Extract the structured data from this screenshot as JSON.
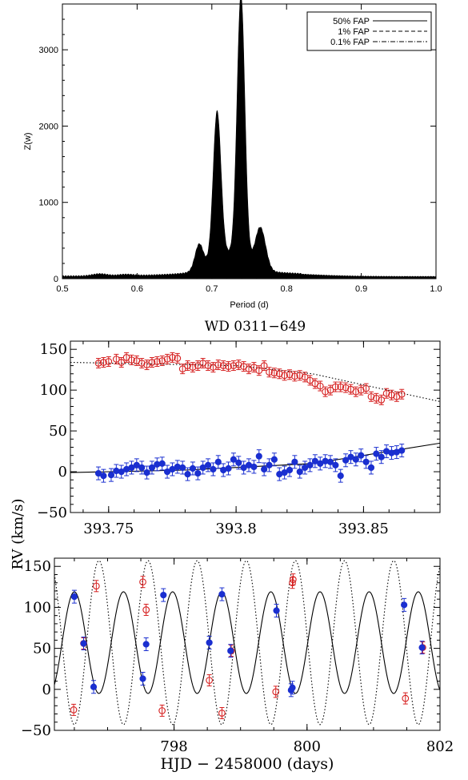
{
  "chart_data": [
    {
      "type": "area",
      "title": "",
      "xlabel": "Period (d)",
      "ylabel": "Z(w)",
      "xlim": [
        0.5,
        1.0
      ],
      "ylim": [
        0,
        3600
      ],
      "x_ticks": [
        0.5,
        0.6,
        0.7,
        0.8,
        0.9,
        1.0
      ],
      "x_tick_labels": [
        "0.5",
        "0.6",
        "0.7",
        "0.8",
        "0.9",
        "1.0"
      ],
      "y_ticks": [
        0,
        1000,
        2000,
        3000
      ],
      "y_tick_labels": [
        "0",
        "1000",
        "2000",
        "3000"
      ],
      "legend_position": "top-right",
      "legend": [
        {
          "label": "50% FAP",
          "style": "solid"
        },
        {
          "label": "1% FAP",
          "style": "dashed"
        },
        {
          "label": "0.1% FAP",
          "style": "dash-dot"
        }
      ],
      "peaks": [
        {
          "period": 0.683,
          "power": 330
        },
        {
          "period": 0.707,
          "power": 1920
        },
        {
          "period": 0.739,
          "power": 3450
        },
        {
          "period": 0.765,
          "power": 550
        }
      ]
    },
    {
      "type": "scatter",
      "title": "WD 0311−649",
      "xlabel": "",
      "ylabel": "RV (km/s)",
      "xlim": [
        393.735,
        393.88
      ],
      "ylim": [
        -50,
        160
      ],
      "x_ticks": [
        393.75,
        393.8,
        393.85
      ],
      "x_tick_labels": [
        "393.75",
        "393.8",
        "393.85"
      ],
      "y_ticks": [
        -50,
        0,
        50,
        100,
        150
      ],
      "y_tick_labels": [
        "−50",
        "0",
        "50",
        "100",
        "150"
      ],
      "fit_lines": [
        {
          "name": "",
          "style": "dotted",
          "points": [
            [
              393.735,
              134
            ],
            [
              393.8,
              130
            ],
            [
              393.83,
              120
            ],
            [
              393.88,
              86
            ]
          ]
        },
        {
          "name": "",
          "style": "solid",
          "points": [
            [
              393.735,
              -1
            ],
            [
              393.78,
              2
            ],
            [
              393.83,
              10
            ],
            [
              393.88,
              35
            ]
          ]
        }
      ],
      "series": [
        {
          "name": "",
          "marker": "open-circle",
          "color": "#d62020",
          "x": [
            393.746,
            393.748,
            393.75,
            393.753,
            393.755,
            393.757,
            393.759,
            393.761,
            393.763,
            393.765,
            393.767,
            393.769,
            393.771,
            393.773,
            393.775,
            393.777,
            393.779,
            393.781,
            393.783,
            393.785,
            393.787,
            393.789,
            393.791,
            393.793,
            393.795,
            393.797,
            393.799,
            393.801,
            393.803,
            393.805,
            393.807,
            393.809,
            393.811,
            393.813,
            393.815,
            393.817,
            393.819,
            393.821,
            393.823,
            393.825,
            393.827,
            393.829,
            393.831,
            393.833,
            393.835,
            393.837,
            393.839,
            393.841,
            393.843,
            393.845,
            393.847,
            393.849,
            393.851,
            393.853,
            393.855,
            393.857,
            393.859,
            393.861,
            393.863,
            393.865
          ],
          "y": [
            133,
            134,
            135,
            138,
            134,
            140,
            137,
            136,
            133,
            131,
            134,
            135,
            136,
            138,
            140,
            139,
            126,
            130,
            128,
            130,
            133,
            130,
            128,
            131,
            130,
            129,
            130,
            131,
            129,
            126,
            128,
            124,
            130,
            122,
            121,
            120,
            118,
            119,
            117,
            118,
            116,
            112,
            108,
            105,
            98,
            100,
            104,
            104,
            103,
            101,
            98,
            100,
            102,
            92,
            90,
            88,
            96,
            94,
            92,
            95
          ]
        },
        {
          "name": "",
          "marker": "filled-circle",
          "color": "#1a2fd0",
          "x": [
            393.746,
            393.748,
            393.751,
            393.753,
            393.755,
            393.757,
            393.759,
            393.761,
            393.763,
            393.765,
            393.767,
            393.769,
            393.771,
            393.773,
            393.775,
            393.777,
            393.779,
            393.781,
            393.783,
            393.785,
            393.787,
            393.789,
            393.791,
            393.793,
            393.795,
            393.797,
            393.799,
            393.801,
            393.803,
            393.805,
            393.807,
            393.809,
            393.811,
            393.813,
            393.815,
            393.817,
            393.819,
            393.821,
            393.823,
            393.825,
            393.827,
            393.829,
            393.831,
            393.833,
            393.835,
            393.837,
            393.839,
            393.841,
            393.843,
            393.845,
            393.847,
            393.849,
            393.851,
            393.853,
            393.855,
            393.857,
            393.859,
            393.861,
            393.863,
            393.865
          ],
          "y": [
            -2,
            -5,
            -4,
            1,
            0,
            3,
            5,
            8,
            5,
            -1,
            5,
            9,
            10,
            0,
            3,
            6,
            5,
            -3,
            4,
            -2,
            5,
            8,
            3,
            12,
            2,
            4,
            15,
            11,
            5,
            8,
            6,
            19,
            3,
            8,
            15,
            -3,
            -1,
            2,
            12,
            0,
            5,
            8,
            13,
            10,
            13,
            12,
            8,
            -5,
            14,
            18,
            15,
            20,
            12,
            5,
            22,
            18,
            25,
            23,
            24,
            26
          ]
        }
      ]
    },
    {
      "type": "scatter",
      "title": "",
      "xlabel": "HJD − 2458000 (days)",
      "ylabel": "",
      "xlim": [
        796.2,
        802.0
      ],
      "ylim": [
        -50,
        160
      ],
      "x_ticks": [
        798,
        800,
        802
      ],
      "x_tick_labels": [
        "798",
        "800",
        "802"
      ],
      "y_ticks": [
        -50,
        0,
        50,
        100,
        150
      ],
      "y_tick_labels": [
        "−50",
        "0",
        "50",
        "100",
        "150"
      ],
      "period_days": 0.739,
      "model_curves": [
        {
          "name": "",
          "style": "solid",
          "gamma": 57,
          "semi_amplitude": 62,
          "reference_max": 796.5
        },
        {
          "name": "",
          "style": "dotted",
          "gamma": 57,
          "semi_amplitude": 100,
          "reference_max": 796.87
        }
      ],
      "series": [
        {
          "name": "",
          "marker": "filled-circle",
          "color": "#1a2fd0",
          "x": [
            796.5,
            796.64,
            796.79,
            797.53,
            797.58,
            797.84,
            798.53,
            798.72,
            798.85,
            799.54,
            799.76,
            799.78,
            801.46,
            801.73
          ],
          "y": [
            113,
            56,
            3,
            13,
            55,
            115,
            57,
            116,
            47,
            96,
            -1,
            2,
            103,
            51
          ]
        },
        {
          "name": "",
          "marker": "open-circle",
          "color": "#d62020",
          "x": [
            796.49,
            796.64,
            796.83,
            797.53,
            797.58,
            797.82,
            798.53,
            798.72,
            798.86,
            799.53,
            799.78,
            799.79,
            801.48,
            801.74
          ],
          "y": [
            -25,
            56,
            126,
            131,
            97,
            -26,
            11,
            -29,
            47,
            -3,
            130,
            134,
            -11,
            51
          ]
        }
      ]
    }
  ]
}
